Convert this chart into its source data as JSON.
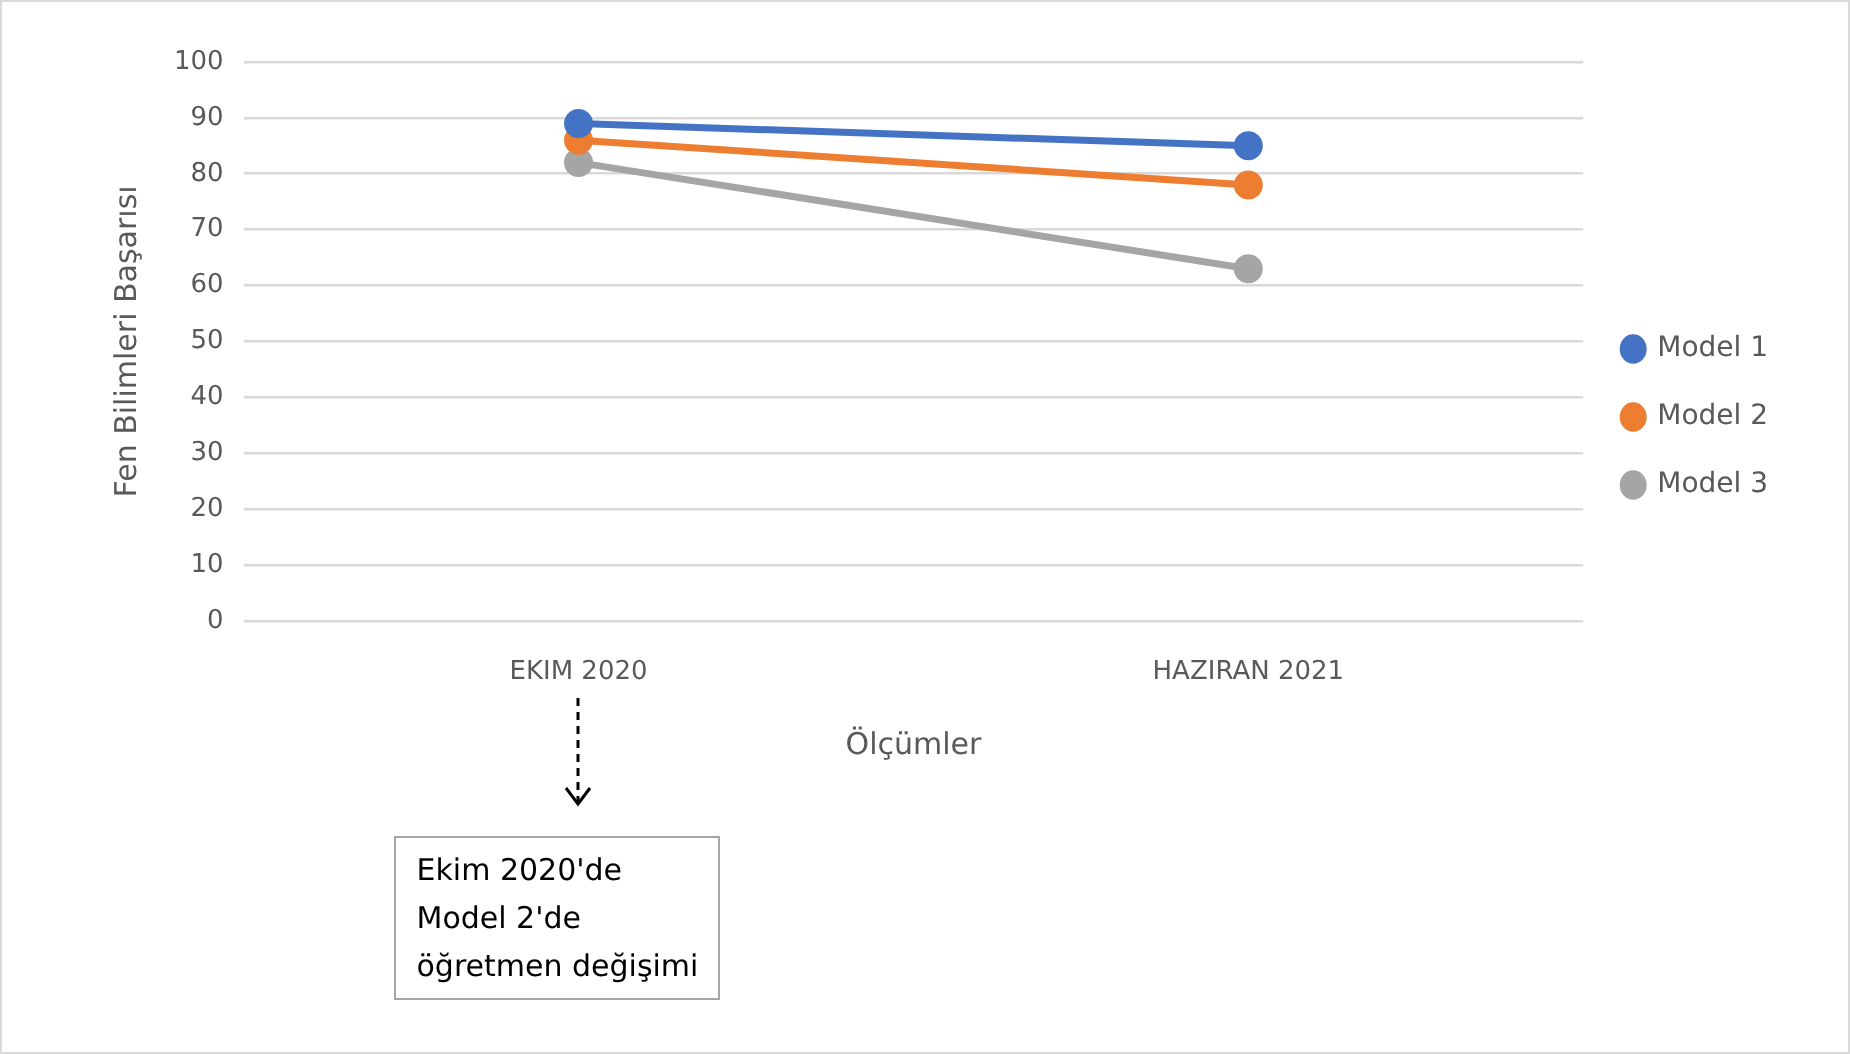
{
  "chart_data": {
    "type": "line",
    "xlabel": "Ölçümler",
    "ylabel": "Fen Bilimleri Başarısı",
    "categories": [
      "EKIM 2020",
      "HAZIRAN 2021"
    ],
    "series": [
      {
        "name": "Model 1",
        "color": "#4472c4",
        "values": [
          89,
          85
        ]
      },
      {
        "name": "Model 2",
        "color": "#ed7d31",
        "values": [
          86,
          78
        ]
      },
      {
        "name": "Model 3",
        "color": "#a5a5a5",
        "values": [
          82,
          63
        ]
      }
    ],
    "ylim": [
      0,
      100
    ],
    "yticks": [
      0,
      10,
      20,
      30,
      40,
      50,
      60,
      70,
      80,
      90,
      100
    ],
    "grid": "y",
    "legend": "right",
    "marker": "circle",
    "line_style": "solid",
    "annotations": [
      "Ekim 2020'de\nModel 2'de\nöğretmen değişimi"
    ]
  }
}
